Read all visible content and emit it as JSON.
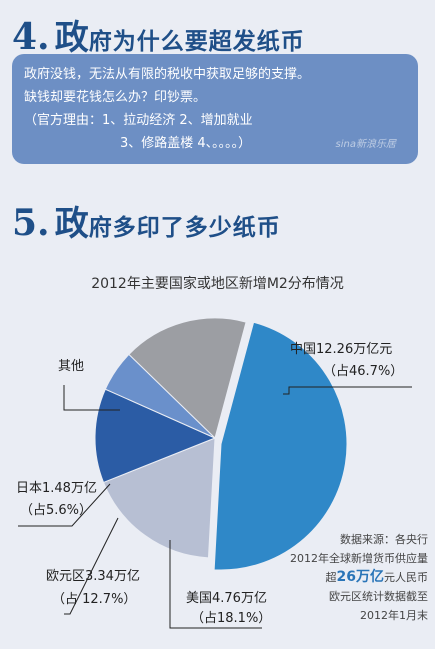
{
  "section4": {
    "num": "4.",
    "big": "政",
    "rest": "府为什么要超发纸币",
    "lines": [
      "政府没钱，无法从有限的税收中获取足够的支撑。",
      "缺钱却要花钱怎么办？印钞票。",
      "（官方理由：1、拉动经济 2、增加就业",
      "3、修路盖楼 4、。。。。）"
    ],
    "watermark": "sina新浪乐居"
  },
  "section5": {
    "num": "5.",
    "big": "政",
    "rest": "府多印了多少纸币"
  },
  "chart_data": {
    "type": "pie",
    "title": "2012年主要国家或地区新增M2分布情况",
    "unit": "万亿元",
    "slices": [
      {
        "label": "中国12.26万亿元",
        "share": "（占46.7%）",
        "value": 12.26,
        "percent": 46.7,
        "color": "#2f88c8"
      },
      {
        "label": "美国4.76万亿",
        "share": "（占18.1%）",
        "value": 4.76,
        "percent": 18.1,
        "color": "#b7bfd3"
      },
      {
        "label": "欧元区3.34万亿",
        "share": "（占 12.7%）",
        "value": 3.34,
        "percent": 12.7,
        "color": "#2b5ca5"
      },
      {
        "label": "日本1.48万亿",
        "share": "（占5.6%）",
        "value": 1.48,
        "percent": 5.6,
        "color": "#6a90cb"
      },
      {
        "label": "其他",
        "share": "",
        "value": 4.41,
        "percent": 16.9,
        "color": "#9c9ea3"
      }
    ]
  },
  "source": {
    "line1": "数据来源：各央行",
    "line2": "2012年全球新增货币供应量",
    "line3_pre": "超",
    "line3_hl": "26万亿",
    "line3_post": "元人民币",
    "line4": "欧元区统计数据截至",
    "line5": "2012年1月末"
  }
}
